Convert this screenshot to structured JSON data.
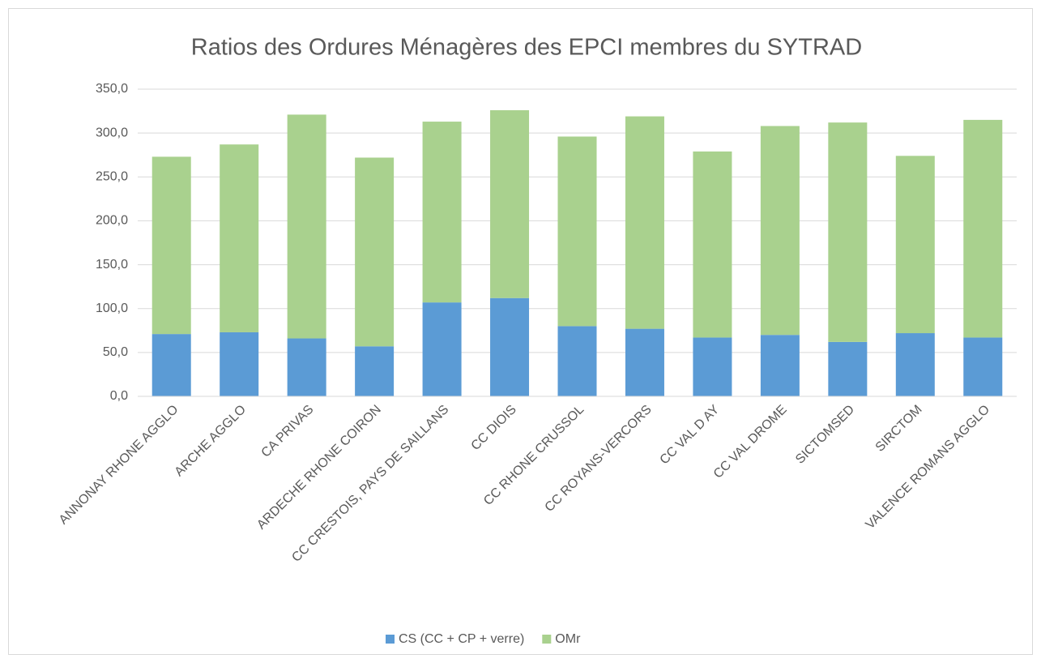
{
  "chart_data": {
    "type": "stacked_bar",
    "title": "Ratios des Ordures Ménagères des EPCI membres du SYTRAD",
    "categories": [
      "ANNONAY RHONE AGGLO",
      "ARCHE AGGLO",
      "CA PRIVAS",
      "ARDECHE RHONE COIRON",
      "CC CRESTOIS, PAYS DE SAILLANS",
      "CC DIOIS",
      "CC RHONE CRUSSOL",
      "CC ROYANS-VERCORS",
      "CC VAL D AY",
      "CC VAL DROME",
      "SICTOMSED",
      "SIRCTOM",
      "VALENCE ROMANS AGGLO"
    ],
    "series": [
      {
        "name": "CS (CC + CP + verre)",
        "color": "#5b9bd5",
        "values": [
          71,
          73,
          66,
          57,
          107,
          112,
          80,
          77,
          67,
          70,
          62,
          72,
          67
        ]
      },
      {
        "name": "OMr",
        "color": "#a9d18e",
        "values": [
          202,
          214,
          255,
          215,
          206,
          214,
          216,
          242,
          212,
          238,
          250,
          202,
          248
        ]
      }
    ],
    "ylim": [
      0,
      350
    ],
    "yticks": [
      {
        "value": 0,
        "label": "0,0"
      },
      {
        "value": 50,
        "label": "50,0"
      },
      {
        "value": 100,
        "label": "100,0"
      },
      {
        "value": 150,
        "label": "150,0"
      },
      {
        "value": 200,
        "label": "200,0"
      },
      {
        "value": 250,
        "label": "250,0"
      },
      {
        "value": 300,
        "label": "300,0"
      },
      {
        "value": 350,
        "label": "350,0"
      }
    ],
    "grid": true,
    "legend": "bottom"
  }
}
